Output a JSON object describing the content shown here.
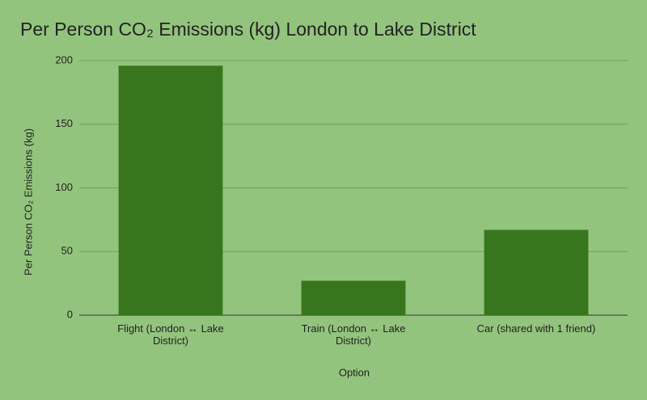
{
  "chart_data": {
    "type": "bar",
    "title": "Per Person CO₂ Emissions (kg) London to Lake District",
    "x_label": "Option",
    "y_label": "Per Person CO₂ Emissions (kg)",
    "categories": [
      "Flight (London ↔ Lake District)",
      "Train (London ↔ Lake District)",
      "Car (shared with 1 friend)"
    ],
    "values": [
      196,
      27,
      67
    ],
    "color": "#38761d",
    "ylim": [
      0,
      200
    ],
    "yticks": [
      0,
      50,
      100,
      150,
      200
    ],
    "grid": true
  }
}
